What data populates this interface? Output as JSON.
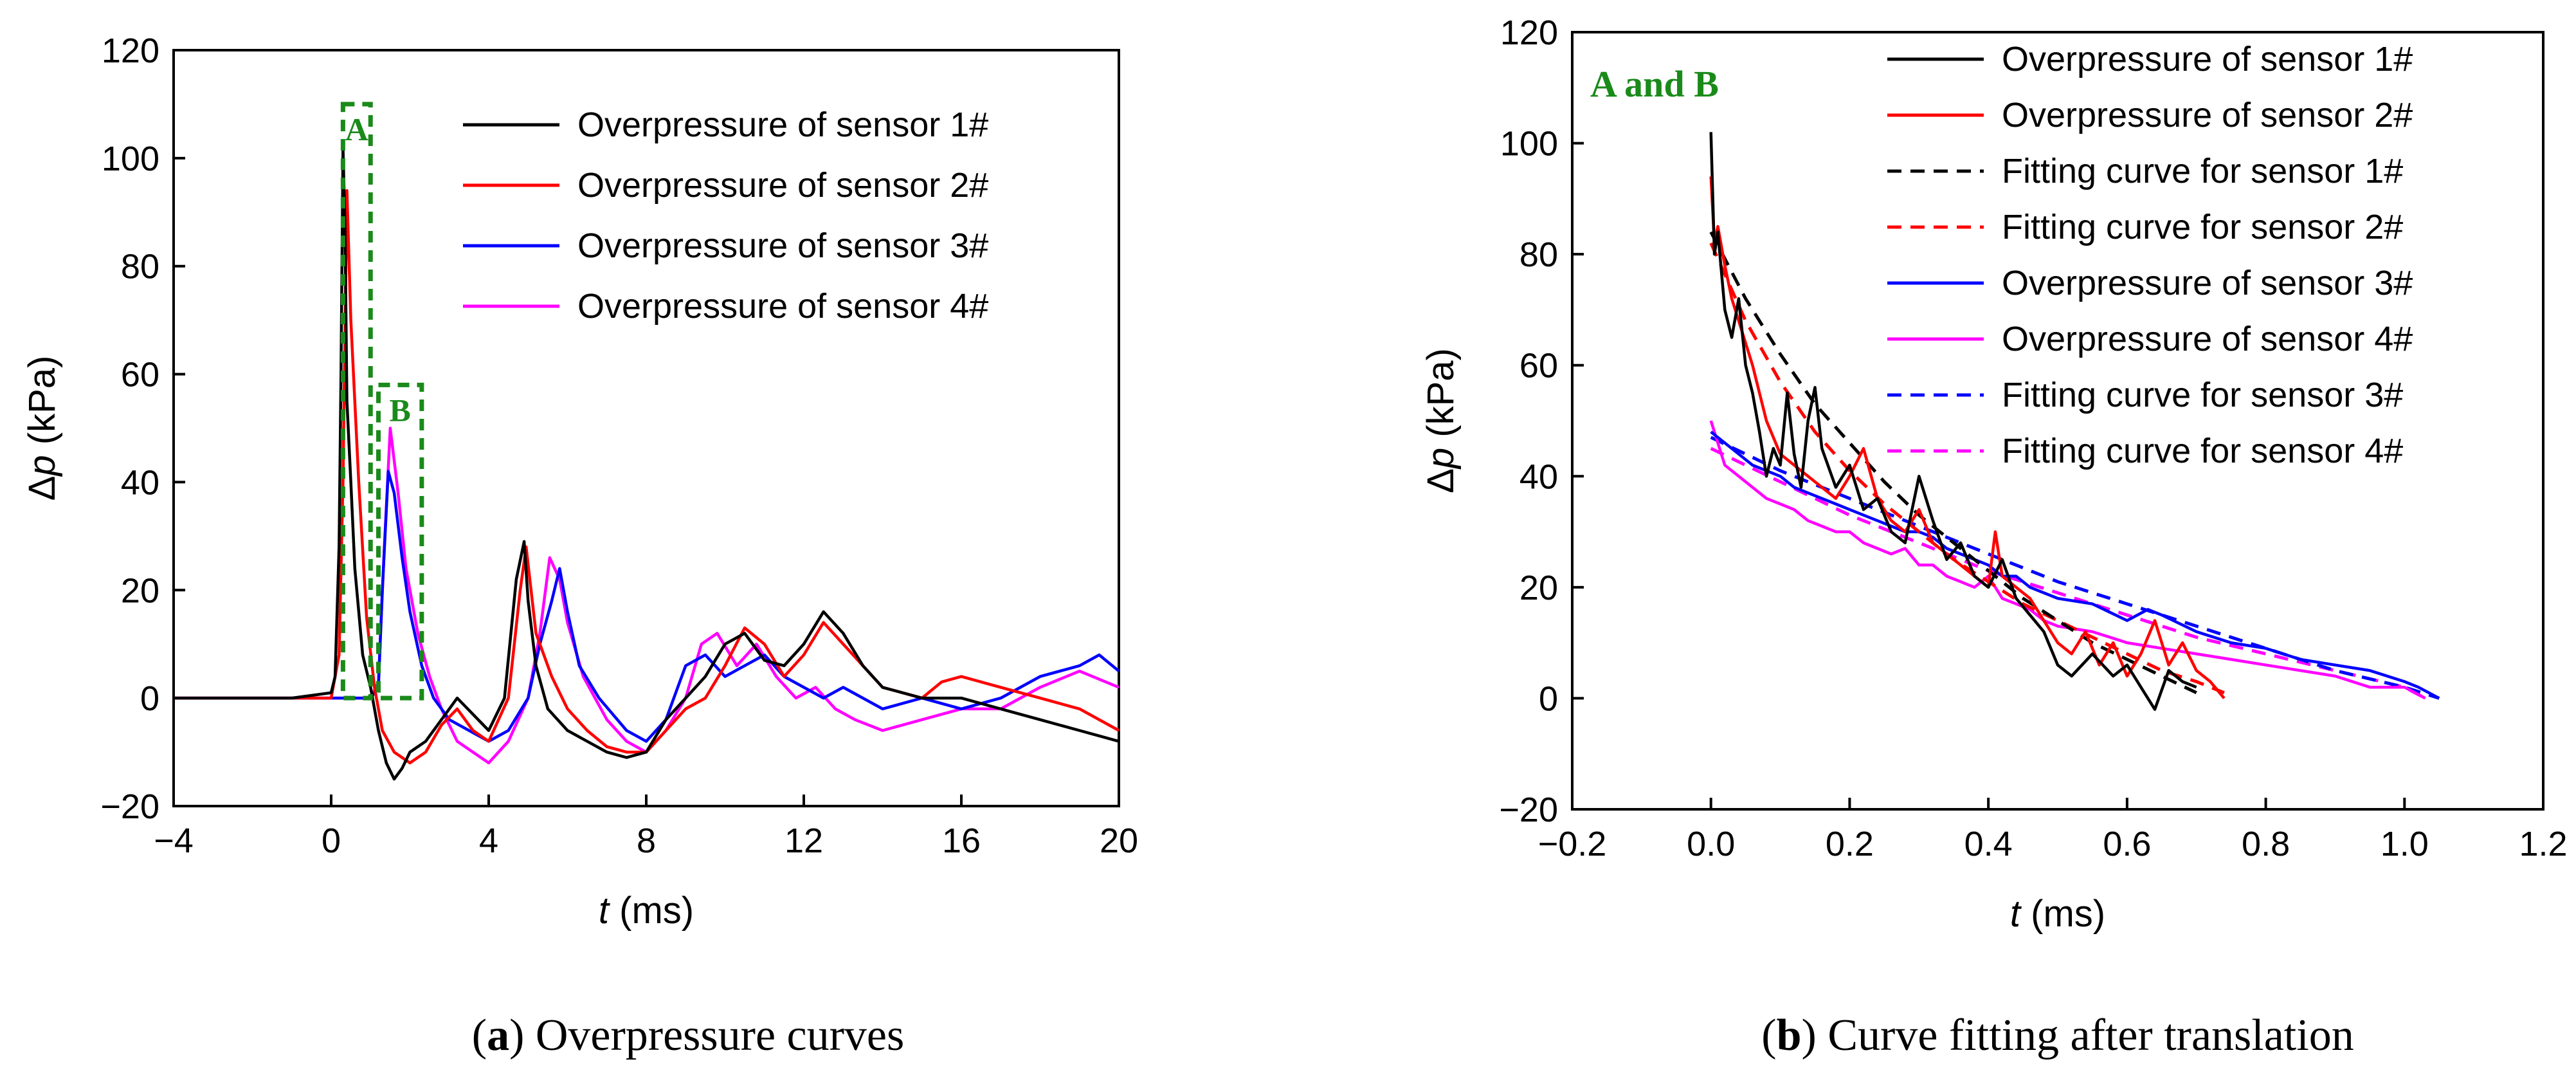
{
  "chart_data": [
    {
      "panel": "a",
      "type": "line",
      "caption_letter": "a",
      "caption_text": "Overpressure curves",
      "xlabel_var": "t",
      "xlabel_unit": "(ms)",
      "ylabel_prefix": "Δ",
      "ylabel_var": "p",
      "ylabel_unit": "(kPa)",
      "xlim": [
        -4,
        20
      ],
      "ylim": [
        -20,
        120
      ],
      "xticks": [
        -4,
        0,
        4,
        8,
        12,
        16,
        20
      ],
      "yticks": [
        -20,
        0,
        20,
        40,
        60,
        80,
        100,
        120
      ],
      "grid": false,
      "legend_position": "top-right",
      "annotations": [
        {
          "label": "A",
          "x0": 0.3,
          "x1": 1.0,
          "y0": 0,
          "y1": 110,
          "color": "#1a8a1a"
        },
        {
          "label": "B",
          "x0": 1.2,
          "x1": 2.3,
          "y0": 0,
          "y1": 58,
          "color": "#1a8a1a"
        }
      ],
      "series": [
        {
          "name": "Overpressure of sensor 1#",
          "color": "#000000",
          "x": [
            -4,
            -1,
            0,
            0.1,
            0.2,
            0.25,
            0.3,
            0.35,
            0.4,
            0.5,
            0.6,
            0.8,
            1.0,
            1.2,
            1.4,
            1.6,
            1.8,
            2.0,
            2.4,
            2.8,
            3.2,
            3.6,
            4.0,
            4.4,
            4.7,
            4.9,
            5.0,
            5.2,
            5.5,
            6.0,
            6.5,
            7.0,
            7.5,
            8.0,
            8.5,
            9.0,
            9.5,
            10.0,
            10.5,
            11.0,
            11.5,
            12.0,
            12.5,
            13.0,
            13.5,
            14.0,
            15.0,
            16.0,
            17.0,
            18.0,
            19.0,
            20.0
          ],
          "y": [
            0,
            0,
            1,
            4,
            28,
            60,
            102,
            88,
            55,
            40,
            24,
            8,
            2,
            -6,
            -12,
            -15,
            -13,
            -10,
            -8,
            -4,
            0,
            -3,
            -6,
            0,
            22,
            29,
            18,
            6,
            -2,
            -6,
            -8,
            -10,
            -11,
            -10,
            -4,
            0,
            4,
            10,
            12,
            7,
            6,
            10,
            16,
            12,
            6,
            2,
            0,
            0,
            -2,
            -4,
            -6,
            -8
          ]
        },
        {
          "name": "Overpressure of sensor 2#",
          "color": "#ff0000",
          "x": [
            -4,
            -1,
            0,
            0.2,
            0.3,
            0.4,
            0.5,
            0.7,
            0.9,
            1.1,
            1.3,
            1.6,
            2.0,
            2.4,
            2.8,
            3.2,
            3.6,
            4.0,
            4.5,
            4.8,
            4.95,
            5.2,
            5.6,
            6.0,
            6.5,
            7.0,
            7.5,
            8.0,
            8.5,
            9.0,
            9.5,
            10.0,
            10.5,
            11.0,
            11.5,
            12.0,
            12.5,
            13.0,
            13.5,
            14.0,
            15.0,
            15.5,
            16.0,
            17.0,
            18.0,
            19.0,
            20.0
          ],
          "y": [
            0,
            0,
            0,
            8,
            40,
            94,
            70,
            40,
            15,
            2,
            -6,
            -10,
            -12,
            -10,
            -5,
            -2,
            -6,
            -8,
            0,
            20,
            28,
            12,
            4,
            -2,
            -6,
            -9,
            -10,
            -10,
            -6,
            -2,
            0,
            6,
            13,
            10,
            4,
            8,
            14,
            10,
            6,
            2,
            0,
            3,
            4,
            2,
            0,
            -2,
            -6
          ]
        },
        {
          "name": "Overpressure of sensor 3#",
          "color": "#0000ff",
          "x": [
            -4,
            1.0,
            1.2,
            1.3,
            1.45,
            1.6,
            1.8,
            2.0,
            2.3,
            2.6,
            3.0,
            3.5,
            4.0,
            4.5,
            5.0,
            5.3,
            5.6,
            5.8,
            6.0,
            6.3,
            6.8,
            7.5,
            8.0,
            8.5,
            8.8,
            9.0,
            9.5,
            10.0,
            10.5,
            11.0,
            11.5,
            12.0,
            12.5,
            13.0,
            13.5,
            14.0,
            15.0,
            16.0,
            17.0,
            18.0,
            19.0,
            19.5,
            20.0
          ],
          "y": [
            0,
            0,
            2,
            20,
            42,
            38,
            26,
            16,
            6,
            0,
            -4,
            -6,
            -8,
            -6,
            0,
            10,
            18,
            24,
            16,
            6,
            0,
            -6,
            -8,
            -4,
            2,
            6,
            8,
            4,
            6,
            8,
            4,
            2,
            0,
            2,
            0,
            -2,
            0,
            -2,
            0,
            4,
            6,
            8,
            5
          ]
        },
        {
          "name": "Overpressure of sensor 4#",
          "color": "#ff00ff",
          "x": [
            -4,
            1.0,
            1.2,
            1.35,
            1.5,
            1.7,
            1.9,
            2.2,
            2.5,
            2.8,
            3.2,
            3.6,
            4.0,
            4.5,
            5.0,
            5.3,
            5.55,
            5.8,
            6.0,
            6.4,
            7.0,
            7.5,
            8.0,
            8.5,
            9.0,
            9.4,
            9.8,
            10.3,
            10.8,
            11.3,
            11.8,
            12.3,
            12.8,
            13.3,
            14.0,
            15.0,
            16.0,
            17.0,
            18.0,
            19.0,
            20.0
          ],
          "y": [
            0,
            0,
            3,
            28,
            50,
            38,
            24,
            12,
            4,
            -2,
            -8,
            -10,
            -12,
            -8,
            0,
            12,
            26,
            22,
            14,
            4,
            -4,
            -8,
            -10,
            -6,
            0,
            10,
            12,
            6,
            10,
            4,
            0,
            2,
            -2,
            -4,
            -6,
            -4,
            -2,
            -2,
            2,
            5,
            2
          ]
        }
      ]
    },
    {
      "panel": "b",
      "type": "line",
      "caption_letter": "b",
      "caption_text": "Curve fitting after translation",
      "xlabel_var": "t",
      "xlabel_unit": "(ms)",
      "ylabel_prefix": "Δ",
      "ylabel_var": "p",
      "ylabel_unit": "(kPa)",
      "xlim": [
        -0.2,
        1.2
      ],
      "ylim": [
        -20,
        120
      ],
      "xticks": [
        -0.2,
        0.0,
        0.2,
        0.4,
        0.6,
        0.8,
        1.0,
        1.2
      ],
      "xtick_labels": [
        "−0.2",
        "0.0",
        "0.2",
        "0.4",
        "0.6",
        "0.8",
        "1.0",
        "1.2"
      ],
      "yticks": [
        -20,
        0,
        20,
        40,
        60,
        80,
        100,
        120
      ],
      "grid": false,
      "legend_position": "top-right",
      "inset_label": {
        "text": "A and B",
        "color": "#1a8a1a"
      },
      "series": [
        {
          "name": "Overpressure of sensor 1#",
          "color": "#000000",
          "dash": false,
          "x": [
            0.0,
            0.005,
            0.01,
            0.02,
            0.03,
            0.04,
            0.05,
            0.06,
            0.07,
            0.08,
            0.09,
            0.1,
            0.11,
            0.12,
            0.13,
            0.14,
            0.15,
            0.16,
            0.18,
            0.2,
            0.22,
            0.24,
            0.26,
            0.28,
            0.3,
            0.32,
            0.34,
            0.36,
            0.38,
            0.4,
            0.42,
            0.44,
            0.46,
            0.48,
            0.5,
            0.52,
            0.55,
            0.58,
            0.6,
            0.62,
            0.64,
            0.66,
            0.68,
            0.7
          ],
          "y": [
            102,
            80,
            84,
            70,
            65,
            72,
            60,
            55,
            48,
            40,
            45,
            42,
            55,
            44,
            38,
            50,
            56,
            45,
            38,
            42,
            34,
            36,
            30,
            28,
            40,
            32,
            25,
            28,
            22,
            20,
            25,
            18,
            15,
            12,
            6,
            4,
            8,
            4,
            6,
            2,
            -2,
            5,
            3,
            2
          ]
        },
        {
          "name": "Overpressure of sensor 2#",
          "color": "#ff0000",
          "dash": false,
          "x": [
            0.0,
            0.005,
            0.01,
            0.02,
            0.03,
            0.04,
            0.06,
            0.08,
            0.1,
            0.12,
            0.14,
            0.16,
            0.18,
            0.2,
            0.22,
            0.24,
            0.26,
            0.28,
            0.3,
            0.32,
            0.34,
            0.36,
            0.38,
            0.4,
            0.41,
            0.42,
            0.44,
            0.46,
            0.48,
            0.5,
            0.52,
            0.54,
            0.56,
            0.58,
            0.6,
            0.62,
            0.64,
            0.66,
            0.68,
            0.7,
            0.72,
            0.74
          ],
          "y": [
            94,
            82,
            85,
            78,
            72,
            68,
            60,
            50,
            44,
            42,
            40,
            38,
            36,
            40,
            45,
            36,
            32,
            30,
            34,
            28,
            26,
            24,
            22,
            20,
            30,
            22,
            20,
            18,
            14,
            10,
            8,
            12,
            6,
            10,
            4,
            8,
            14,
            6,
            10,
            5,
            3,
            0
          ]
        },
        {
          "name": "Fitting curve for sensor 1#",
          "color": "#000000",
          "dash": true,
          "x": [
            0.0,
            0.05,
            0.1,
            0.15,
            0.2,
            0.25,
            0.3,
            0.35,
            0.4,
            0.45,
            0.5,
            0.55,
            0.6,
            0.65,
            0.7
          ],
          "y": [
            84,
            72,
            62,
            53,
            46,
            39,
            33,
            28,
            23,
            18,
            14,
            10,
            7,
            4,
            1
          ]
        },
        {
          "name": "Fitting curve for sensor 2#",
          "color": "#ff0000",
          "dash": true,
          "x": [
            0.0,
            0.05,
            0.1,
            0.15,
            0.2,
            0.25,
            0.3,
            0.35,
            0.4,
            0.45,
            0.5,
            0.55,
            0.6,
            0.65,
            0.7,
            0.74
          ],
          "y": [
            82,
            68,
            57,
            48,
            41,
            35,
            30,
            25,
            21,
            17,
            14,
            11,
            8,
            5,
            3,
            1
          ]
        },
        {
          "name": "Overpressure of sensor 3#",
          "color": "#0000ff",
          "dash": false,
          "x": [
            0.0,
            0.02,
            0.04,
            0.06,
            0.08,
            0.1,
            0.12,
            0.14,
            0.16,
            0.18,
            0.2,
            0.22,
            0.24,
            0.26,
            0.28,
            0.3,
            0.32,
            0.34,
            0.36,
            0.38,
            0.4,
            0.42,
            0.44,
            0.46,
            0.48,
            0.5,
            0.55,
            0.6,
            0.63,
            0.65,
            0.7,
            0.75,
            0.8,
            0.85,
            0.9,
            0.95,
            1.0,
            1.02,
            1.05
          ],
          "y": [
            48,
            46,
            44,
            42,
            41,
            40,
            38,
            37,
            36,
            35,
            34,
            33,
            32,
            31,
            30,
            30,
            29,
            27,
            26,
            25,
            24,
            22,
            22,
            20,
            19,
            18,
            17,
            14,
            16,
            15,
            12,
            10,
            9,
            7,
            6,
            5,
            3,
            2,
            0
          ]
        },
        {
          "name": "Overpressure of sensor 4#",
          "color": "#ff00ff",
          "dash": false,
          "x": [
            0.0,
            0.02,
            0.04,
            0.06,
            0.08,
            0.1,
            0.12,
            0.14,
            0.16,
            0.18,
            0.2,
            0.22,
            0.24,
            0.26,
            0.28,
            0.3,
            0.32,
            0.34,
            0.36,
            0.38,
            0.4,
            0.42,
            0.44,
            0.46,
            0.48,
            0.5,
            0.55,
            0.6,
            0.65,
            0.7,
            0.75,
            0.8,
            0.85,
            0.9,
            0.95,
            1.0,
            1.03
          ],
          "y": [
            50,
            42,
            40,
            38,
            36,
            35,
            34,
            32,
            31,
            30,
            30,
            28,
            27,
            26,
            27,
            24,
            24,
            22,
            21,
            20,
            22,
            18,
            17,
            16,
            14,
            13,
            12,
            10,
            9,
            8,
            7,
            6,
            5,
            4,
            2,
            2,
            0
          ]
        },
        {
          "name": "Fitting curve for sensor 3#",
          "color": "#0000ff",
          "dash": true,
          "x": [
            0.0,
            0.1,
            0.2,
            0.3,
            0.4,
            0.5,
            0.6,
            0.7,
            0.8,
            0.9,
            1.0,
            1.05
          ],
          "y": [
            47,
            41,
            36,
            31,
            26,
            21,
            17,
            13,
            9,
            5,
            2,
            0
          ]
        },
        {
          "name": "Fitting curve for sensor 4#",
          "color": "#ff00ff",
          "dash": true,
          "x": [
            0.0,
            0.1,
            0.2,
            0.3,
            0.4,
            0.5,
            0.6,
            0.7,
            0.8,
            0.9,
            1.0,
            1.03
          ],
          "y": [
            45,
            39,
            33,
            28,
            23,
            19,
            15,
            11,
            8,
            5,
            2,
            0
          ]
        }
      ]
    }
  ]
}
